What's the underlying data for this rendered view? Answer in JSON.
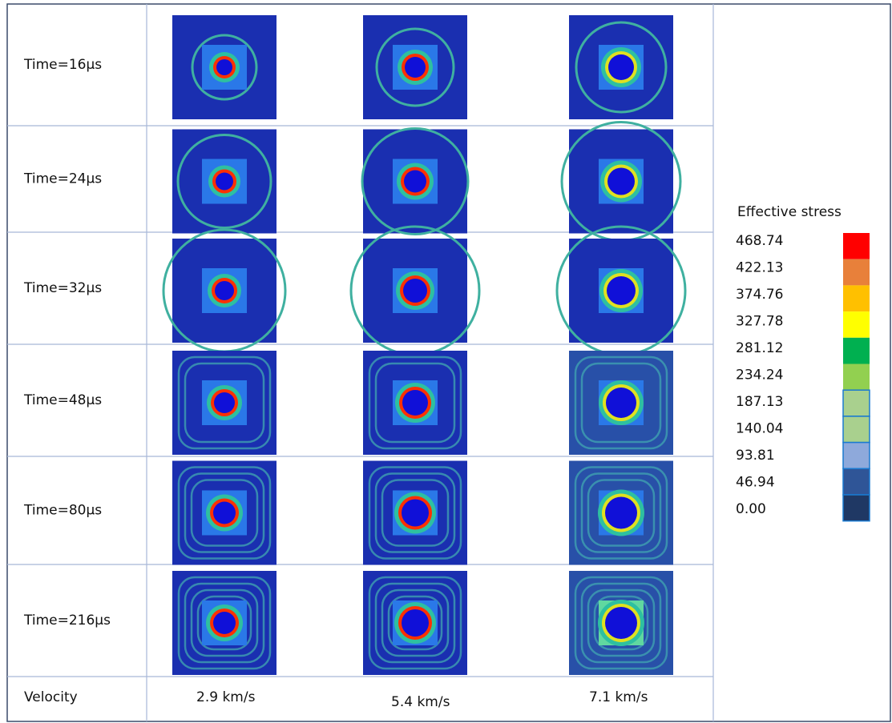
{
  "table": {
    "rows": [
      [
        "Time=16µs"
      ],
      [
        "Time=24µs"
      ],
      [
        "Time=32µs"
      ],
      [
        "Time=48µs"
      ],
      [
        "Time=80µs"
      ],
      [
        "Time=216µs"
      ]
    ],
    "footer": [
      "Velocity",
      "2.9 km/s",
      "5.4 km/s",
      "7.1 km/s"
    ]
  },
  "legend": {
    "title": "Effective stress",
    "values": [
      "468.74",
      "422.13",
      "374.76",
      "327.78",
      "281.12",
      "234.24",
      "187.13",
      "140.04",
      "93.81",
      "46.94",
      "0.00"
    ],
    "colors": [
      "#ff0000",
      "#e8803a",
      "#ffc000",
      "#ffff00",
      "#00b050",
      "#92d050",
      "#a9d08e",
      "#a9d08e",
      "#8ea9db",
      "#2f5597",
      "#1f3864"
    ]
  }
}
